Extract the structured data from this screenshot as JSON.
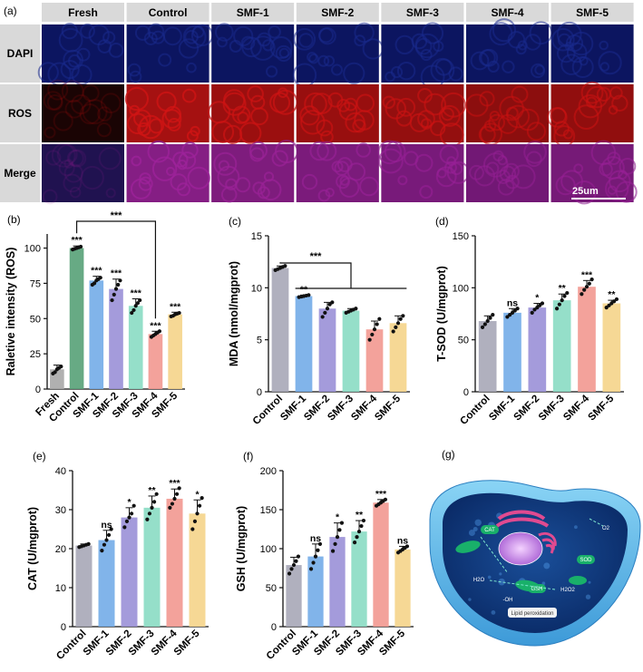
{
  "panel_a": {
    "label": "(a)",
    "columns": [
      "Fresh",
      "Control",
      "SMF-1",
      "SMF-2",
      "SMF-3",
      "SMF-4",
      "SMF-5"
    ],
    "rows": [
      "DAPI",
      "ROS",
      "Merge"
    ],
    "scale_bar": "25um",
    "channel_colors": {
      "DAPI": "#1a2a8c",
      "ROS": "#c01010",
      "Merge": "#8a1c8c"
    },
    "ros_intensity": [
      0.08,
      1.0,
      0.78,
      0.7,
      0.6,
      0.4,
      0.52
    ]
  },
  "panel_g": {
    "label": "(g)",
    "labels": [
      "CAT",
      "SOD",
      "GSH",
      "Lipid peroxidation",
      "-OH",
      "H2O",
      "O2",
      "H2O2"
    ]
  },
  "chart_data": [
    {
      "id": "b",
      "label": "(b)",
      "type": "bar",
      "ylabel": "Raletive intensity (ROS)",
      "ylim": [
        0,
        110
      ],
      "yticks": [
        0,
        25,
        50,
        75,
        100
      ],
      "categories": [
        "Fresh",
        "Control",
        "SMF-1",
        "SMF-2",
        "SMF-3",
        "SMF-4",
        "SMF-5"
      ],
      "values": [
        14,
        100,
        77,
        71,
        59,
        39,
        53
      ],
      "errors": [
        3,
        1.5,
        3,
        7,
        5,
        2,
        1.5
      ],
      "significance": [
        "",
        "***",
        "***",
        "***",
        "***",
        "***",
        "***"
      ],
      "points": [
        [
          11,
          12,
          14,
          15,
          16
        ],
        [
          99,
          99.5,
          100,
          100.5,
          101
        ],
        [
          74,
          75,
          77,
          78,
          79
        ],
        [
          63,
          67,
          71,
          74,
          77
        ],
        [
          54,
          56,
          59,
          61,
          63
        ],
        [
          37,
          38,
          39,
          40,
          41
        ],
        [
          51.5,
          52,
          53,
          53.5,
          54
        ]
      ],
      "bracket": {
        "from": 1,
        "to": 5,
        "text": "***"
      },
      "colors": [
        "#a9a9a9",
        "#5aa37a",
        "#76aee8",
        "#9c92d8",
        "#8cdcc4",
        "#f29a92",
        "#f5d58c"
      ]
    },
    {
      "id": "c",
      "label": "(c)",
      "type": "bar",
      "ylabel": "MDA (nmol/mgprot)",
      "ylim": [
        0,
        15
      ],
      "yticks": [
        0,
        5,
        10,
        15
      ],
      "categories": [
        "Control",
        "SMF-1",
        "SMF-2",
        "SMF-3",
        "SMF-4",
        "SMF-5"
      ],
      "values": [
        11.9,
        9.2,
        8.0,
        7.8,
        6.0,
        6.6
      ],
      "errors": [
        0.2,
        0.1,
        0.6,
        0.2,
        0.8,
        0.7
      ],
      "significance": [
        "",
        "**",
        "",
        "",
        "",
        ""
      ],
      "points": [
        [
          11.7,
          11.8,
          11.9,
          12.0,
          12.1
        ],
        [
          9.1,
          9.15,
          9.2,
          9.25,
          9.3
        ],
        [
          7.2,
          7.6,
          8.0,
          8.4,
          8.6
        ],
        [
          7.6,
          7.7,
          7.8,
          7.9,
          8.0
        ],
        [
          5.0,
          5.5,
          6.0,
          6.5,
          7.0
        ],
        [
          5.8,
          6.2,
          6.6,
          7.0,
          7.3
        ]
      ],
      "bracket": {
        "from": 0,
        "to_range": [
          1,
          5
        ],
        "text": "***"
      },
      "colors": [
        "#a9a9b8",
        "#76aee8",
        "#9c92d8",
        "#8cdcc4",
        "#f29a92",
        "#f5d58c"
      ]
    },
    {
      "id": "d",
      "label": "(d)",
      "type": "bar",
      "ylabel": "T-SOD (U/mgprot)",
      "ylim": [
        0,
        150
      ],
      "yticks": [
        0,
        50,
        100,
        150
      ],
      "categories": [
        "Control",
        "SMF-1",
        "SMF-2",
        "SMF-3",
        "SMF-4",
        "SMF-5"
      ],
      "values": [
        68,
        76,
        81,
        88,
        101,
        85
      ],
      "errors": [
        5,
        4,
        4,
        6,
        6,
        3
      ],
      "significance": [
        "",
        "ns",
        "*",
        "**",
        "***",
        "**"
      ],
      "points": [
        [
          62,
          65,
          68,
          71,
          74
        ],
        [
          72,
          74,
          76,
          78,
          80
        ],
        [
          76,
          79,
          81,
          83,
          85
        ],
        [
          80,
          84,
          88,
          92,
          95
        ],
        [
          94,
          98,
          101,
          104,
          108
        ],
        [
          81,
          83,
          85,
          87,
          89
        ]
      ],
      "colors": [
        "#a9a9b8",
        "#76aee8",
        "#9c92d8",
        "#8cdcc4",
        "#f29a92",
        "#f5d58c"
      ]
    },
    {
      "id": "e",
      "label": "(e)",
      "type": "bar",
      "ylabel": "CAT (U/mgprot)",
      "ylim": [
        0,
        40
      ],
      "yticks": [
        0,
        10,
        20,
        30,
        40
      ],
      "categories": [
        "Control",
        "SMF-1",
        "SMF-2",
        "SMF-3",
        "SMF-4",
        "SMF-5"
      ],
      "values": [
        20.8,
        22.2,
        28.0,
        30.5,
        32.8,
        29.0
      ],
      "errors": [
        0.4,
        2.5,
        2.5,
        3.0,
        2.5,
        3.5
      ],
      "significance": [
        "",
        "ns",
        "*",
        "**",
        "***",
        "*"
      ],
      "points": [
        [
          20.4,
          20.6,
          20.8,
          21.0,
          21.2
        ],
        [
          19.5,
          21,
          22.2,
          23.5,
          25
        ],
        [
          25.5,
          27,
          28,
          29,
          31
        ],
        [
          27.5,
          29,
          30.5,
          32,
          34
        ],
        [
          30.5,
          31.5,
          32.8,
          34,
          35.5
        ],
        [
          25,
          27,
          29,
          31,
          33
        ]
      ],
      "colors": [
        "#a9a9b8",
        "#76aee8",
        "#9c92d8",
        "#8cdcc4",
        "#f29a92",
        "#f5d58c"
      ]
    },
    {
      "id": "f",
      "label": "(f)",
      "type": "bar",
      "ylabel": "GSH (U/mgprot)",
      "ylim": [
        0,
        200
      ],
      "yticks": [
        0,
        50,
        100,
        150,
        200
      ],
      "categories": [
        "Control",
        "SMF-1",
        "SMF-2",
        "SMF-3",
        "SMF-4",
        "SMF-5"
      ],
      "values": [
        79,
        90,
        115,
        122,
        159,
        99
      ],
      "errors": [
        10,
        16,
        18,
        14,
        4,
        4
      ],
      "significance": [
        "",
        "ns",
        "*",
        "**",
        "***",
        "ns"
      ],
      "points": [
        [
          68,
          74,
          79,
          84,
          90
        ],
        [
          74,
          82,
          90,
          98,
          106
        ],
        [
          97,
          106,
          115,
          124,
          133
        ],
        [
          108,
          115,
          122,
          129,
          136
        ],
        [
          155,
          157,
          159,
          161,
          163
        ],
        [
          95,
          97,
          99,
          101,
          103
        ]
      ],
      "colors": [
        "#a9a9b8",
        "#76aee8",
        "#9c92d8",
        "#8cdcc4",
        "#f29a92",
        "#f5d58c"
      ]
    }
  ]
}
